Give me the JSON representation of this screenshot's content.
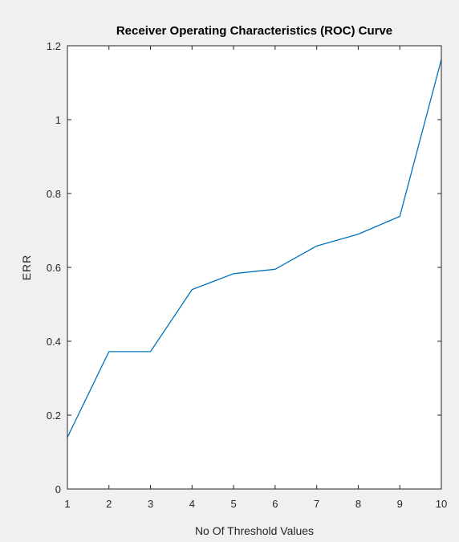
{
  "chart_data": {
    "type": "line",
    "title": "Receiver Operating Characteristics (ROC) Curve",
    "xlabel": "No Of  Threshold Values",
    "ylabel": "ERR",
    "xlim": [
      1,
      10
    ],
    "ylim": [
      0,
      1.2
    ],
    "xticks": [
      "1",
      "2",
      "3",
      "4",
      "5",
      "6",
      "7",
      "8",
      "9",
      "10"
    ],
    "yticks": [
      "0",
      "0.2",
      "0.4",
      "0.6",
      "0.8",
      "1",
      "1.2"
    ],
    "grid": false,
    "series": [
      {
        "color": "#0072bd",
        "x": [
          1,
          2,
          3,
          4,
          5,
          6,
          7,
          8,
          9,
          10
        ],
        "y": [
          0.14,
          0.372,
          0.372,
          0.54,
          0.583,
          0.595,
          0.658,
          0.69,
          0.738,
          1.163
        ]
      }
    ],
    "colors": {
      "figure_bg": "#f0f0f0",
      "axes_bg": "#ffffff",
      "axes_edge": "#262626"
    }
  }
}
